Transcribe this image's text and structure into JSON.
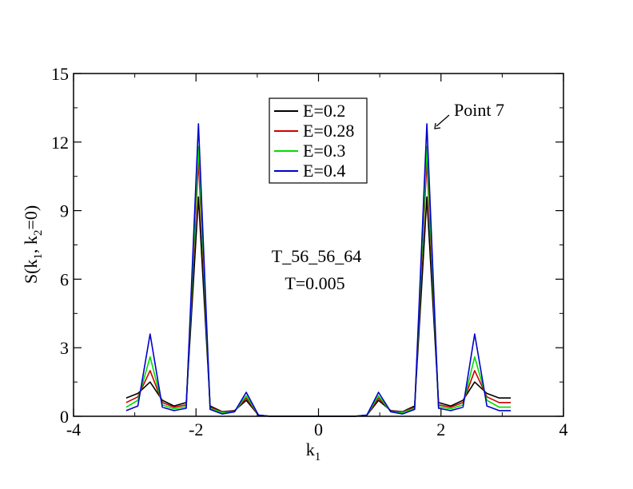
{
  "chart_data": {
    "type": "line",
    "xlabel_main": "k",
    "xlabel_sub": "1",
    "ylabel_parts": [
      "S(k",
      "1",
      ", k",
      "2",
      "=0)"
    ],
    "xlim": [
      -4,
      4
    ],
    "ylim": [
      0,
      15
    ],
    "xticks": [
      -4,
      -2,
      0,
      2,
      4
    ],
    "yticks": [
      0,
      3,
      6,
      9,
      12,
      15
    ],
    "grid": false,
    "legend_position": "top-center",
    "annotations": {
      "label": "T_56_56_64",
      "temp": "T=0.005",
      "point": "Point 7"
    },
    "x": [
      -3.14,
      -2.95,
      -2.75,
      -2.55,
      -2.36,
      -2.16,
      -1.96,
      -1.77,
      -1.57,
      -1.37,
      -1.18,
      -0.98,
      -0.79,
      -0.59,
      -0.39,
      -0.2,
      0.0,
      0.2,
      0.39,
      0.59,
      0.79,
      0.98,
      1.18,
      1.37,
      1.57,
      1.77,
      1.96,
      2.16,
      2.36,
      2.55,
      2.75,
      2.95,
      3.14
    ],
    "series": [
      {
        "name": "E=0.2",
        "color": "#000000",
        "values": [
          0.8,
          1.0,
          1.5,
          0.7,
          0.45,
          0.6,
          9.6,
          0.45,
          0.2,
          0.25,
          0.7,
          0.05,
          0.0,
          0.0,
          0.0,
          0.0,
          0.0,
          0.0,
          0.0,
          0.0,
          0.05,
          0.7,
          0.25,
          0.2,
          0.45,
          9.6,
          0.6,
          0.45,
          0.7,
          1.5,
          1.0,
          0.8,
          0.8
        ]
      },
      {
        "name": "E=0.28",
        "color": "#cc0000",
        "values": [
          0.6,
          0.85,
          2.0,
          0.6,
          0.4,
          0.5,
          11.2,
          0.4,
          0.18,
          0.22,
          0.8,
          0.05,
          0.0,
          0.0,
          0.0,
          0.0,
          0.0,
          0.0,
          0.0,
          0.0,
          0.05,
          0.8,
          0.22,
          0.18,
          0.4,
          11.2,
          0.5,
          0.4,
          0.6,
          2.0,
          0.85,
          0.6,
          0.6
        ]
      },
      {
        "name": "E=0.3",
        "color": "#00dd00",
        "values": [
          0.4,
          0.7,
          2.6,
          0.5,
          0.33,
          0.42,
          11.8,
          0.35,
          0.16,
          0.2,
          0.9,
          0.05,
          0.0,
          0.0,
          0.0,
          0.0,
          0.0,
          0.0,
          0.0,
          0.0,
          0.05,
          0.9,
          0.2,
          0.16,
          0.35,
          11.8,
          0.42,
          0.33,
          0.5,
          2.6,
          0.7,
          0.4,
          0.4
        ]
      },
      {
        "name": "E=0.4",
        "color": "#0000cc",
        "values": [
          0.25,
          0.45,
          3.6,
          0.4,
          0.25,
          0.35,
          12.8,
          0.3,
          0.1,
          0.2,
          1.05,
          0.05,
          0.0,
          0.0,
          0.0,
          0.0,
          0.0,
          0.0,
          0.0,
          0.0,
          0.05,
          1.05,
          0.2,
          0.1,
          0.3,
          12.8,
          0.35,
          0.25,
          0.4,
          3.6,
          0.45,
          0.25,
          0.25
        ]
      }
    ]
  }
}
